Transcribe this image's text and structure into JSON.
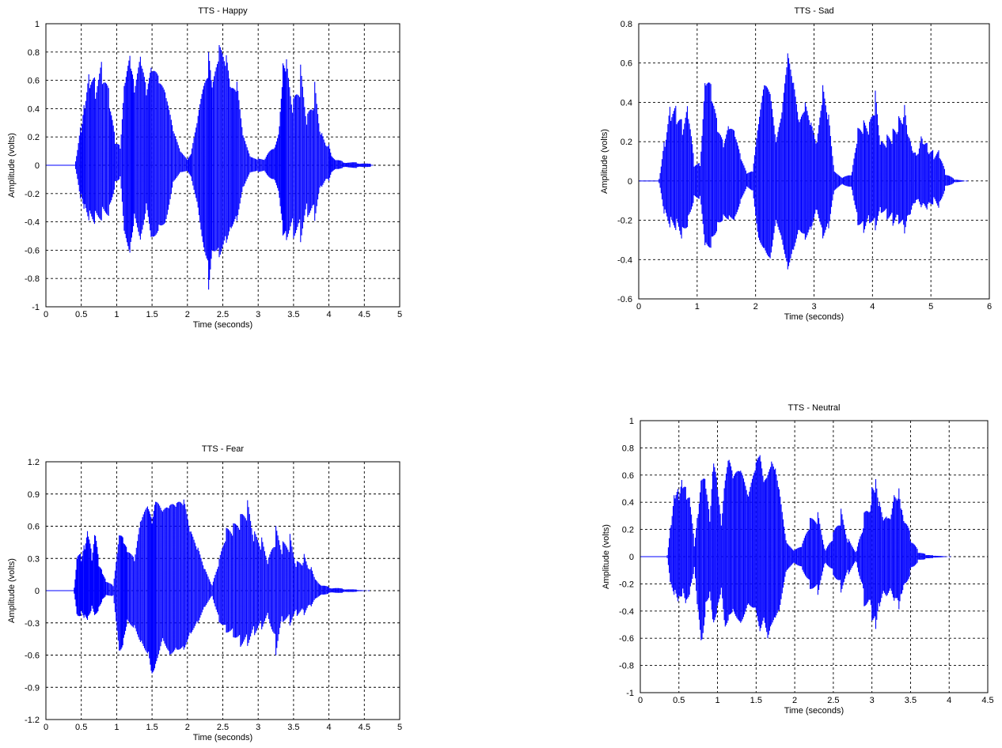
{
  "chart_data": [
    {
      "type": "line",
      "title": "TTS - Happy",
      "xlabel": "Time (seconds)",
      "ylabel": "Amplitude (volts)",
      "xlim": [
        0,
        5
      ],
      "ylim": [
        -1,
        1
      ],
      "xticks": [
        0,
        0.5,
        1,
        1.5,
        2,
        2.5,
        3,
        3.5,
        4,
        4.5,
        5
      ],
      "xticklabels": [
        "0",
        "0.5",
        "1",
        "1.5",
        "2",
        "2.5",
        "3",
        "3.5",
        "4",
        "4.5",
        "5"
      ],
      "yticks": [
        -1,
        -0.8,
        -0.6,
        -0.4,
        -0.2,
        0,
        0.2,
        0.4,
        0.6,
        0.8,
        1
      ],
      "yticklabels": [
        "-1",
        "-0.8",
        "-0.6",
        "-0.4",
        "-0.2",
        "0",
        "0.2",
        "0.4",
        "0.6",
        "0.8",
        "1"
      ],
      "grid": true,
      "color": "#0000ff",
      "series": [
        {
          "x": [
            0.42,
            0.5,
            0.55,
            0.62,
            0.7,
            0.8,
            0.9,
            0.98,
            1.05,
            1.12,
            1.2,
            1.25,
            1.35,
            1.42,
            1.5,
            1.6,
            1.7,
            1.8,
            1.9,
            2.0,
            2.05,
            2.15,
            2.3,
            2.35,
            2.45,
            2.55,
            2.62,
            2.7,
            2.8,
            2.9,
            3.0,
            3.1,
            3.3,
            3.35,
            3.4,
            3.5,
            3.6,
            3.7,
            3.8,
            3.9,
            4.0,
            4.05,
            4.2,
            4.4,
            4.6
          ],
          "upper": [
            0.05,
            0.4,
            0.65,
            0.85,
            0.7,
            0.82,
            0.55,
            0.2,
            0.15,
            0.72,
            0.82,
            0.6,
            0.8,
            0.55,
            0.72,
            0.62,
            0.5,
            0.25,
            0.1,
            0.04,
            0.08,
            0.35,
            0.8,
            0.55,
            0.85,
            0.78,
            0.55,
            0.6,
            0.2,
            0.06,
            0.05,
            0.05,
            0.3,
            0.8,
            0.85,
            0.55,
            0.85,
            0.45,
            0.75,
            0.3,
            0.2,
            0.08,
            0.03,
            0.02,
            0.01
          ],
          "lower": [
            -0.05,
            -0.35,
            -0.45,
            -0.5,
            -0.48,
            -0.42,
            -0.38,
            -0.15,
            -0.1,
            -0.6,
            -0.65,
            -0.4,
            -0.55,
            -0.3,
            -0.55,
            -0.45,
            -0.4,
            -0.12,
            -0.05,
            -0.04,
            -0.08,
            -0.3,
            -0.88,
            -0.6,
            -0.65,
            -0.55,
            -0.45,
            -0.4,
            -0.15,
            -0.05,
            -0.05,
            -0.05,
            -0.25,
            -0.55,
            -0.6,
            -0.6,
            -0.65,
            -0.45,
            -0.5,
            -0.2,
            -0.15,
            -0.06,
            -0.02,
            -0.02,
            -0.01
          ]
        }
      ]
    },
    {
      "type": "line",
      "title": "TTS - Sad",
      "xlabel": "Time (seconds)",
      "ylabel": "Amplitude (volts)",
      "xlim": [
        0,
        6
      ],
      "ylim": [
        -0.6,
        0.8
      ],
      "xticks": [
        0,
        1,
        2,
        3,
        4,
        5,
        6
      ],
      "xticklabels": [
        "0",
        "1",
        "2",
        "3",
        "4",
        "5",
        "6"
      ],
      "yticks": [
        -0.6,
        -0.4,
        -0.2,
        0,
        0.2,
        0.4,
        0.6,
        0.8
      ],
      "yticklabels": [
        "-0.6",
        "-0.4",
        "-0.2",
        "0",
        "0.2",
        "0.4",
        "0.6",
        "0.8"
      ],
      "grid": true,
      "color": "#0000ff",
      "series": [
        {
          "x": [
            0.35,
            0.45,
            0.55,
            0.65,
            0.75,
            0.85,
            0.95,
            1.05,
            1.15,
            1.25,
            1.35,
            1.45,
            1.55,
            1.65,
            1.75,
            1.85,
            1.95,
            2.05,
            2.15,
            2.25,
            2.35,
            2.45,
            2.55,
            2.65,
            2.75,
            2.85,
            2.95,
            3.05,
            3.15,
            3.25,
            3.35,
            3.5,
            3.65,
            3.75,
            3.85,
            3.95,
            4.05,
            4.15,
            4.25,
            4.35,
            4.45,
            4.55,
            4.65,
            4.75,
            4.85,
            4.95,
            5.05,
            5.15,
            5.25,
            5.4,
            5.6
          ],
          "upper": [
            0.02,
            0.3,
            0.5,
            0.45,
            0.35,
            0.45,
            0.1,
            0.1,
            0.62,
            0.5,
            0.3,
            0.2,
            0.3,
            0.25,
            0.12,
            0.04,
            0.05,
            0.3,
            0.5,
            0.45,
            0.2,
            0.35,
            0.65,
            0.5,
            0.3,
            0.4,
            0.3,
            0.2,
            0.5,
            0.35,
            0.05,
            0.02,
            0.05,
            0.3,
            0.35,
            0.35,
            0.55,
            0.25,
            0.3,
            0.35,
            0.45,
            0.55,
            0.3,
            0.2,
            0.35,
            0.25,
            0.2,
            0.2,
            0.05,
            0.01,
            0.0
          ],
          "lower": [
            -0.02,
            -0.25,
            -0.3,
            -0.3,
            -0.35,
            -0.25,
            -0.1,
            -0.1,
            -0.4,
            -0.35,
            -0.25,
            -0.2,
            -0.2,
            -0.2,
            -0.1,
            -0.03,
            -0.05,
            -0.3,
            -0.35,
            -0.4,
            -0.2,
            -0.3,
            -0.45,
            -0.35,
            -0.25,
            -0.3,
            -0.25,
            -0.15,
            -0.3,
            -0.25,
            -0.05,
            -0.02,
            -0.05,
            -0.25,
            -0.3,
            -0.25,
            -0.3,
            -0.2,
            -0.25,
            -0.3,
            -0.3,
            -0.38,
            -0.25,
            -0.15,
            -0.2,
            -0.2,
            -0.15,
            -0.18,
            -0.04,
            -0.01,
            0.0
          ]
        }
      ]
    },
    {
      "type": "line",
      "title": "TTS - Fear",
      "xlabel": "Time (seconds)",
      "ylabel": "Amplitude (volts)",
      "xlim": [
        0,
        5
      ],
      "ylim": [
        -1.2,
        1.2
      ],
      "xticks": [
        0,
        0.5,
        1,
        1.5,
        2,
        2.5,
        3,
        3.5,
        4,
        4.5,
        5
      ],
      "xticklabels": [
        "0",
        "0.5",
        "1",
        "1.5",
        "2",
        "2.5",
        "3",
        "3.5",
        "4",
        "4.5",
        "5"
      ],
      "yticks": [
        -1.2,
        -0.9,
        -0.6,
        -0.3,
        0,
        0.3,
        0.6,
        0.9,
        1.2
      ],
      "yticklabels": [
        "-1.2",
        "-0.9",
        "-0.6",
        "-0.3",
        "0",
        "0.3",
        "0.6",
        "0.9",
        "1.2"
      ],
      "grid": true,
      "color": "#0000ff",
      "series": [
        {
          "x": [
            0.4,
            0.45,
            0.5,
            0.55,
            0.6,
            0.65,
            0.7,
            0.75,
            0.8,
            0.85,
            0.95,
            1.05,
            1.1,
            1.15,
            1.25,
            1.35,
            1.45,
            1.5,
            1.55,
            1.65,
            1.75,
            1.85,
            1.95,
            2.05,
            2.15,
            2.25,
            2.35,
            2.45,
            2.55,
            2.65,
            2.75,
            2.85,
            2.95,
            3.05,
            3.15,
            3.25,
            3.35,
            3.45,
            3.55,
            3.65,
            3.75,
            3.85,
            4.0,
            4.2,
            4.4,
            4.55
          ],
          "upper": [
            0.05,
            0.55,
            0.45,
            0.6,
            0.75,
            0.4,
            0.7,
            0.3,
            0.2,
            0.1,
            0.05,
            0.6,
            0.5,
            0.4,
            0.3,
            0.7,
            0.8,
            0.65,
            0.85,
            0.75,
            0.8,
            0.82,
            0.85,
            0.55,
            0.4,
            0.2,
            0.05,
            0.3,
            0.6,
            0.65,
            0.75,
            0.9,
            0.6,
            0.55,
            0.35,
            0.7,
            0.55,
            0.65,
            0.35,
            0.45,
            0.3,
            0.1,
            0.04,
            0.02,
            0.01,
            0.0
          ],
          "lower": [
            -0.05,
            -0.4,
            -0.3,
            -0.35,
            -0.35,
            -0.2,
            -0.3,
            -0.2,
            -0.1,
            -0.05,
            -0.05,
            -0.65,
            -0.5,
            -0.3,
            -0.35,
            -0.5,
            -0.6,
            -0.8,
            -0.7,
            -0.45,
            -0.6,
            -0.55,
            -0.55,
            -0.4,
            -0.3,
            -0.15,
            -0.05,
            -0.3,
            -0.4,
            -0.45,
            -0.55,
            -0.55,
            -0.45,
            -0.4,
            -0.3,
            -0.7,
            -0.35,
            -0.4,
            -0.3,
            -0.3,
            -0.2,
            -0.08,
            -0.03,
            -0.02,
            -0.01,
            0.0
          ]
        }
      ]
    },
    {
      "type": "line",
      "title": "TTS - Neutral",
      "xlabel": "Time (seconds)",
      "ylabel": "Amplitude (volts)",
      "xlim": [
        0,
        4.5
      ],
      "ylim": [
        -1,
        1
      ],
      "xticks": [
        0,
        0.5,
        1,
        1.5,
        2,
        2.5,
        3,
        3.5,
        4,
        4.5
      ],
      "xticklabels": [
        "0",
        "0.5",
        "1",
        "1.5",
        "2",
        "2.5",
        "3",
        "3.5",
        "4",
        "4.5"
      ],
      "yticks": [
        -1,
        -0.8,
        -0.6,
        -0.4,
        -0.2,
        0,
        0.2,
        0.4,
        0.6,
        0.8,
        1
      ],
      "yticklabels": [
        "-1",
        "-0.8",
        "-0.6",
        "-0.4",
        "-0.2",
        "0",
        "0.2",
        "0.4",
        "0.6",
        "0.8",
        "1"
      ],
      "grid": true,
      "color": "#0000ff",
      "series": [
        {
          "x": [
            0.35,
            0.4,
            0.45,
            0.5,
            0.55,
            0.6,
            0.65,
            0.7,
            0.75,
            0.8,
            0.85,
            0.9,
            0.95,
            1.0,
            1.05,
            1.1,
            1.15,
            1.2,
            1.3,
            1.4,
            1.5,
            1.55,
            1.6,
            1.65,
            1.7,
            1.75,
            1.8,
            1.9,
            2.0,
            2.1,
            2.2,
            2.3,
            2.4,
            2.5,
            2.6,
            2.7,
            2.8,
            2.9,
            3.0,
            3.05,
            3.1,
            3.2,
            3.3,
            3.35,
            3.4,
            3.5,
            3.6,
            3.7,
            3.8,
            4.0
          ],
          "upper": [
            0.02,
            0.4,
            0.7,
            0.65,
            0.75,
            0.6,
            0.5,
            0.1,
            0.4,
            0.7,
            0.6,
            0.3,
            0.78,
            0.55,
            0.25,
            0.6,
            0.75,
            0.6,
            0.65,
            0.45,
            0.7,
            0.75,
            0.55,
            0.6,
            0.7,
            0.65,
            0.5,
            0.1,
            0.05,
            0.1,
            0.3,
            0.35,
            0.05,
            0.2,
            0.4,
            0.15,
            0.05,
            0.4,
            0.65,
            0.75,
            0.55,
            0.4,
            0.65,
            0.78,
            0.5,
            0.2,
            0.05,
            0.02,
            0.01,
            0.0
          ],
          "lower": [
            -0.02,
            -0.35,
            -0.4,
            -0.45,
            -0.35,
            -0.45,
            -0.3,
            -0.1,
            -0.5,
            -0.75,
            -0.4,
            -0.3,
            -0.55,
            -0.4,
            -0.25,
            -0.55,
            -0.45,
            -0.4,
            -0.5,
            -0.35,
            -0.4,
            -0.55,
            -0.45,
            -0.6,
            -0.5,
            -0.45,
            -0.4,
            -0.1,
            -0.05,
            -0.1,
            -0.25,
            -0.3,
            -0.05,
            -0.15,
            -0.3,
            -0.15,
            -0.05,
            -0.45,
            -0.6,
            -0.7,
            -0.5,
            -0.4,
            -0.45,
            -0.6,
            -0.4,
            -0.15,
            -0.04,
            -0.02,
            -0.01,
            0.0
          ]
        }
      ]
    }
  ]
}
